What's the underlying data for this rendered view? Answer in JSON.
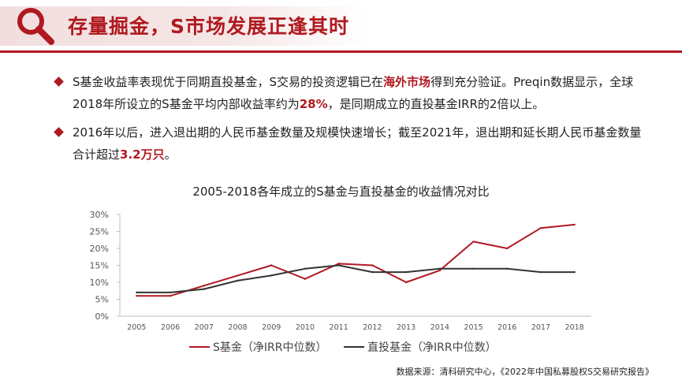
{
  "header": {
    "title": "存量掘金，S市场发展正逢其时",
    "icon": "search-icon",
    "accent_color": "#b01920"
  },
  "bullets": [
    {
      "parts": [
        {
          "text": "S基金收益率表现优于同期直投基金，S交易的投资逻辑已在",
          "highlight": false
        },
        {
          "text": "海外市场",
          "highlight": true
        },
        {
          "text": "得到充分验证。Preqin数据显示，全球2018年所设立的S基金平均内部收益率约为",
          "highlight": false
        },
        {
          "text": "28%",
          "highlight": true
        },
        {
          "text": "，是同期成立的直投基金IRR的2倍以上。",
          "highlight": false
        }
      ]
    },
    {
      "parts": [
        {
          "text": "2016年以后，进入退出期的人民币基金数量及规模快速增长；截至2021年，退出期和延长期人民币基金数量合计超过",
          "highlight": false
        },
        {
          "text": "3.2万只",
          "highlight": true
        },
        {
          "text": "。",
          "highlight": false
        }
      ]
    }
  ],
  "chart_data": {
    "type": "line",
    "title": "2005-2018各年成立的S基金与直投基金的收益情况对比",
    "x": [
      "2005",
      "2006",
      "2007",
      "2008",
      "2009",
      "2010",
      "2011",
      "2012",
      "2013",
      "2014",
      "2015",
      "2016",
      "2017",
      "2018"
    ],
    "series": [
      {
        "name": "S基金（净IRR中位数）",
        "color": "#b01920",
        "values": [
          6,
          6,
          9,
          12,
          15,
          11,
          15.5,
          15,
          10,
          13.5,
          22,
          20,
          26,
          27
        ]
      },
      {
        "name": "直投基金（净IRR中位数）",
        "color": "#333333",
        "values": [
          7,
          7,
          8,
          10.5,
          12,
          14,
          15,
          13,
          13,
          14,
          14,
          14,
          13,
          13
        ]
      }
    ],
    "y_ticks": [
      "0%",
      "5%",
      "10%",
      "15%",
      "20%",
      "25%",
      "30%"
    ],
    "ylim": [
      0,
      30
    ],
    "grid": false,
    "legend_position": "bottom"
  },
  "source": "数据来源：清科研究中心，《2022年中国私募股权S交易研究报告》"
}
